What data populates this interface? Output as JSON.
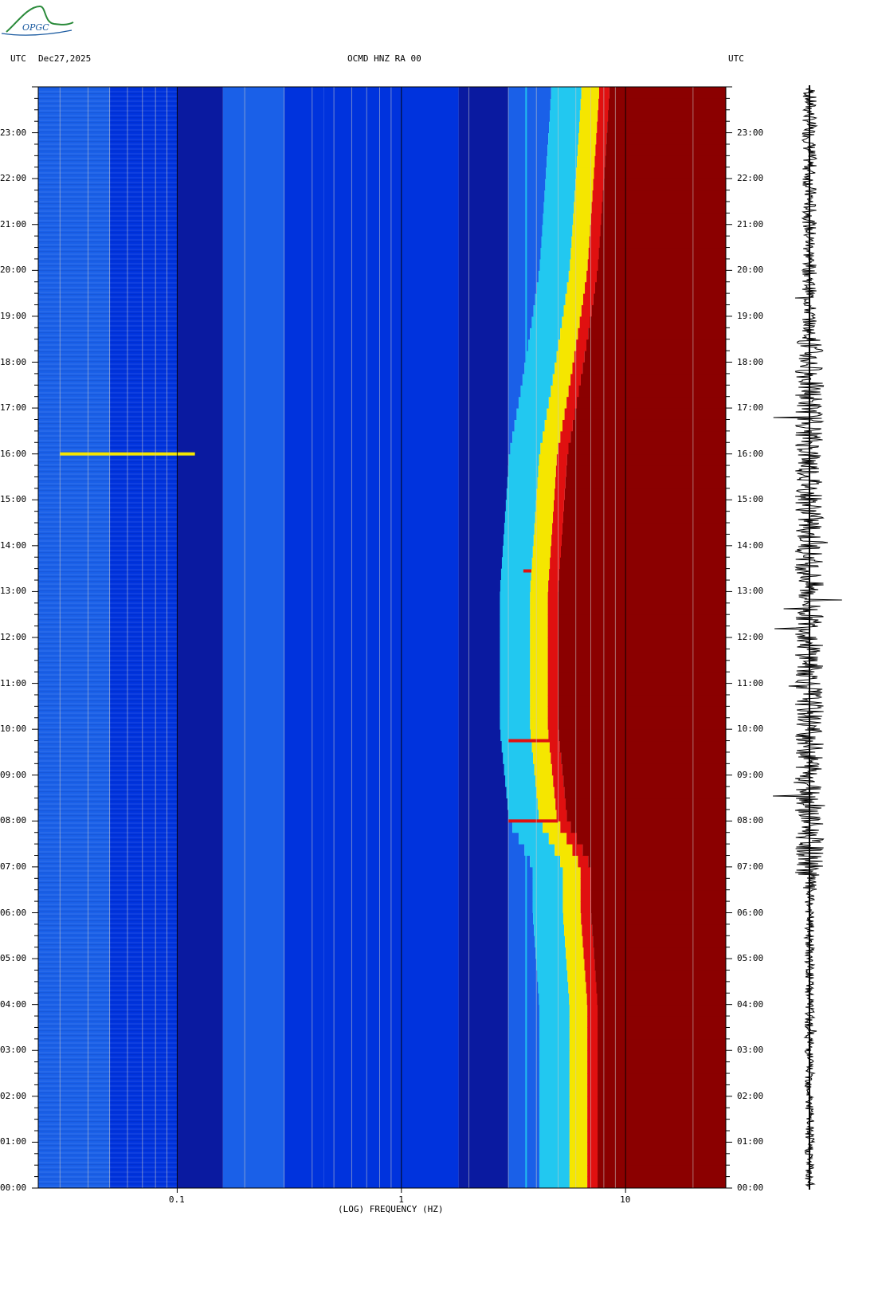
{
  "header": {
    "left_label": "UTC",
    "date": "Dec27,2025",
    "station": "OCMD HNZ RA 00",
    "right_label": "UTC"
  },
  "logo": {
    "text": "OPGC"
  },
  "colors": {
    "dark_navy": "#0a1aa0",
    "blue": "#0033dd",
    "mid_blue": "#1a60e8",
    "cyan": "#22c8f0",
    "yellow": "#f5e600",
    "red": "#e01010",
    "dark_red": "#8b0000"
  },
  "chart_data": {
    "type": "heatmap",
    "title": "OCMD HNZ RA 00",
    "xlabel": "(LOG) FREQUENCY (HZ)",
    "x_scale": "log",
    "xlim": [
      0.024,
      28
    ],
    "x_ticks": [
      {
        "value": 0.1,
        "label": "0.1"
      },
      {
        "value": 1,
        "label": "1"
      },
      {
        "value": 10,
        "label": "10"
      }
    ],
    "x_gridlines": [
      0.03,
      0.04,
      0.05,
      0.06,
      0.07,
      0.08,
      0.09,
      0.1,
      0.2,
      0.3,
      0.4,
      0.5,
      0.6,
      0.7,
      0.8,
      0.9,
      1,
      2,
      3,
      4,
      5,
      6,
      7,
      8,
      9,
      10,
      20
    ],
    "y_labels": [
      "23:00",
      "22:00",
      "21:00",
      "20:00",
      "19:00",
      "18:00",
      "17:00",
      "16:00",
      "15:00",
      "14:00",
      "13:00",
      "12:00",
      "11:00",
      "10:00",
      "09:00",
      "08:00",
      "07:00",
      "06:00",
      "05:00",
      "04:00",
      "03:00",
      "02:00",
      "01:00",
      "00:00"
    ],
    "y_label_hours": [
      23,
      22,
      21,
      20,
      19,
      18,
      17,
      16,
      15,
      14,
      13,
      12,
      11,
      10,
      9,
      8,
      7,
      6,
      5,
      4,
      3,
      2,
      1,
      0
    ],
    "ylim_hours": [
      0,
      24
    ],
    "time_axis": "UTC",
    "colorscale": [
      "#0a1aa0",
      "#0033dd",
      "#1a60e8",
      "#22c8f0",
      "#f5e600",
      "#e01010",
      "#8b0000"
    ],
    "noise_corner_frequency_hz": [
      {
        "hour": 0,
        "freq": 7.5
      },
      {
        "hour": 4,
        "freq": 7.5
      },
      {
        "hour": 6,
        "freq": 7.0
      },
      {
        "hour": 7,
        "freq": 7.0
      },
      {
        "hour": 8,
        "freq": 5.5
      },
      {
        "hour": 10,
        "freq": 5.0
      },
      {
        "hour": 13,
        "freq": 5.0
      },
      {
        "hour": 16,
        "freq": 5.5
      },
      {
        "hour": 18,
        "freq": 6.5
      },
      {
        "hour": 20,
        "freq": 7.5
      },
      {
        "hour": 22,
        "freq": 8.0
      },
      {
        "hour": 24,
        "freq": 8.5
      }
    ],
    "persistent_line_frequency_hz": 3.6,
    "events": [
      {
        "hour": 16.0,
        "fmin": 0.03,
        "fmax": 0.12,
        "level": "yellow"
      },
      {
        "hour": 13.45,
        "fmin": 3.5,
        "fmax": 3.8,
        "level": "red"
      },
      {
        "hour": 9.75,
        "fmin": 3.0,
        "fmax": 5.0,
        "level": "red"
      },
      {
        "hour": 8.0,
        "fmin": 3.0,
        "fmax": 5.0,
        "level": "red"
      }
    ]
  }
}
